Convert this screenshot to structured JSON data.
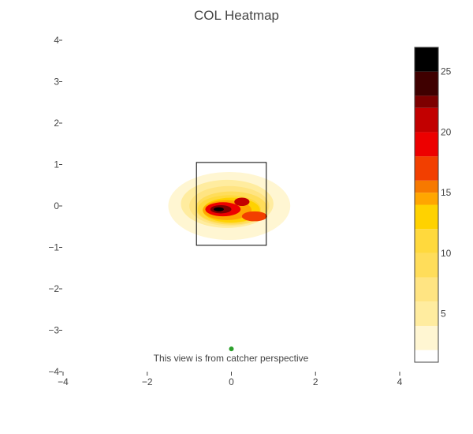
{
  "chart_data": {
    "type": "heatmap",
    "title": "COL Heatmap",
    "xlabel": "",
    "ylabel": "",
    "xlim": [
      -4,
      4
    ],
    "ylim": [
      -4,
      4
    ],
    "x_ticks": [
      -4,
      -2,
      0,
      2,
      4
    ],
    "y_ticks": [
      4,
      3,
      2,
      1,
      0,
      -1,
      -2,
      -3,
      -4
    ],
    "x_tick_labels": [
      "−4",
      "−2",
      "0",
      "2",
      "4"
    ],
    "y_tick_labels": [
      "4",
      "3",
      "2",
      "1",
      "0",
      "−1",
      "−2",
      "−3",
      "−4"
    ],
    "strike_zone": {
      "x": [
        -0.83,
        0.83
      ],
      "y": [
        -0.95,
        1.05
      ]
    },
    "blobs": [
      {
        "cx": -0.05,
        "cy": -0.05,
        "rx": 1.6,
        "ry": 0.95,
        "level": 1
      },
      {
        "cx": -0.05,
        "cy": 0.0,
        "rx": 1.45,
        "ry": 0.82,
        "level": 2
      },
      {
        "cx": -0.1,
        "cy": 0.05,
        "rx": 1.28,
        "ry": 0.7,
        "level": 3
      },
      {
        "cx": -0.1,
        "cy": 0.05,
        "rx": 1.1,
        "ry": 0.58,
        "level": 4
      },
      {
        "cx": -0.05,
        "cy": 0.0,
        "rx": 0.95,
        "ry": 0.48,
        "level": 6
      },
      {
        "cx": 0.0,
        "cy": -0.05,
        "rx": 0.85,
        "ry": 0.4,
        "level": 8
      },
      {
        "cx": -0.05,
        "cy": -0.08,
        "rx": 0.75,
        "ry": 0.34,
        "level": 10
      },
      {
        "cx": 0.0,
        "cy": -0.1,
        "rx": 0.68,
        "ry": 0.3,
        "level": 12
      },
      {
        "cx": -0.1,
        "cy": -0.1,
        "rx": 0.58,
        "ry": 0.24,
        "level": 14
      },
      {
        "cx": 0.55,
        "cy": -0.25,
        "rx": 0.3,
        "ry": 0.12,
        "level": 16
      },
      {
        "cx": -0.2,
        "cy": -0.08,
        "rx": 0.42,
        "ry": 0.17,
        "level": 18
      },
      {
        "cx": 0.25,
        "cy": 0.1,
        "rx": 0.18,
        "ry": 0.1,
        "level": 20
      },
      {
        "cx": -0.25,
        "cy": -0.08,
        "rx": 0.25,
        "ry": 0.1,
        "level": 22
      },
      {
        "cx": -0.3,
        "cy": -0.08,
        "rx": 0.12,
        "ry": 0.05,
        "level": 25
      }
    ],
    "colorbar": {
      "min": 1,
      "max": 27,
      "ticks": [
        5,
        10,
        15,
        20,
        25
      ],
      "bins": [
        {
          "from": 1,
          "to": 2,
          "color": "#ffffff"
        },
        {
          "from": 2,
          "to": 4,
          "color": "#fff6d2"
        },
        {
          "from": 4,
          "to": 6,
          "color": "#ffec9f"
        },
        {
          "from": 6,
          "to": 8,
          "color": "#ffe482"
        },
        {
          "from": 8,
          "to": 10,
          "color": "#ffdd5a"
        },
        {
          "from": 10,
          "to": 12,
          "color": "#ffd93d"
        },
        {
          "from": 12,
          "to": 14,
          "color": "#ffd200"
        },
        {
          "from": 14,
          "to": 15,
          "color": "#ffa600"
        },
        {
          "from": 15,
          "to": 16,
          "color": "#f77900"
        },
        {
          "from": 16,
          "to": 18,
          "color": "#f23f00"
        },
        {
          "from": 18,
          "to": 20,
          "color": "#ed0000"
        },
        {
          "from": 20,
          "to": 22,
          "color": "#c20000"
        },
        {
          "from": 22,
          "to": 23,
          "color": "#7d0000"
        },
        {
          "from": 23,
          "to": 25,
          "color": "#3f0000"
        },
        {
          "from": 25,
          "to": 27,
          "color": "#000000"
        }
      ]
    },
    "marker": {
      "x": 0.0,
      "y": -3.45,
      "color": "#2ca02c"
    },
    "annotation": "This view is from catcher perspective"
  }
}
